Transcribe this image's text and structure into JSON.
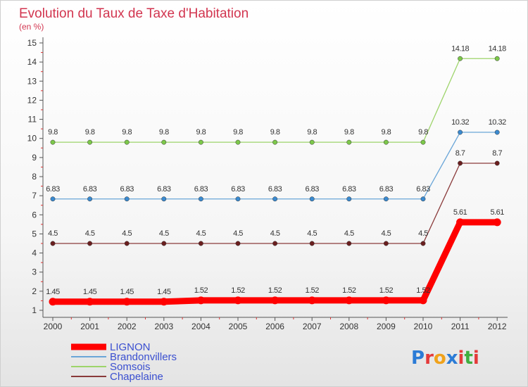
{
  "brand": {
    "name": "Proxiti",
    "letters": [
      "P",
      "r",
      "o",
      "x",
      "i",
      "t",
      "i"
    ],
    "colors": [
      "#2b7bd6",
      "#e43a3a",
      "#f0a21b",
      "#2b7bd6",
      "#e43a3a",
      "#3fae3f",
      "#e43a3a"
    ]
  },
  "chart_data": {
    "type": "line",
    "title": "Evolution du Taux de Taxe d'Habitation",
    "subtitle": "(en %)",
    "xlabel": "",
    "ylabel": "",
    "ylim": [
      1,
      15
    ],
    "yticks": [
      1,
      2,
      3,
      4,
      5,
      6,
      7,
      8,
      9,
      10,
      11,
      12,
      13,
      14,
      15
    ],
    "categories": [
      "2000",
      "2001",
      "2002",
      "2003",
      "2004",
      "2005",
      "2006",
      "2007",
      "2008",
      "2009",
      "2010",
      "2011",
      "2012"
    ],
    "grid": false,
    "legend_position": "bottom-left",
    "series": [
      {
        "name": "LIGNON",
        "color": "#ff0000",
        "point_color": "#ff0000",
        "width": 9,
        "values": [
          1.45,
          1.45,
          1.45,
          1.45,
          1.52,
          1.52,
          1.52,
          1.52,
          1.52,
          1.52,
          1.52,
          5.61,
          5.61
        ],
        "labels": [
          "1.45",
          "1.45",
          "1.45",
          "1.45",
          "1.52",
          "1.52",
          "1.52",
          "1.52",
          "1.52",
          "1.52",
          "1.52",
          "5.61",
          "5.61"
        ]
      },
      {
        "name": "Brandonvillers",
        "color": "#6aa6d8",
        "point_color": "#3a8ad0",
        "width": 1.3,
        "values": [
          6.83,
          6.83,
          6.83,
          6.83,
          6.83,
          6.83,
          6.83,
          6.83,
          6.83,
          6.83,
          6.83,
          10.32,
          10.32
        ],
        "labels": [
          "6.83",
          "6.83",
          "6.83",
          "6.83",
          "6.83",
          "6.83",
          "6.83",
          "6.83",
          "6.83",
          "6.83",
          "6.83",
          "10.32",
          "10.32"
        ]
      },
      {
        "name": "Somsois",
        "color": "#9dd46a",
        "point_color": "#7cc84a",
        "width": 1.3,
        "values": [
          9.8,
          9.8,
          9.8,
          9.8,
          9.8,
          9.8,
          9.8,
          9.8,
          9.8,
          9.8,
          9.8,
          14.18,
          14.18
        ],
        "labels": [
          "9.8",
          "9.8",
          "9.8",
          "9.8",
          "9.8",
          "9.8",
          "9.8",
          "9.8",
          "9.8",
          "9.8",
          "9.8",
          "14.18",
          "14.18"
        ]
      },
      {
        "name": "Chapelaine",
        "color": "#8a3a3a",
        "point_color": "#6b1f1f",
        "width": 1.3,
        "values": [
          4.5,
          4.5,
          4.5,
          4.5,
          4.5,
          4.5,
          4.5,
          4.5,
          4.5,
          4.5,
          4.5,
          8.7,
          8.7
        ],
        "labels": [
          "4.5",
          "4.5",
          "4.5",
          "4.5",
          "4.5",
          "4.5",
          "4.5",
          "4.5",
          "4.5",
          "4.5",
          "4.5",
          "8.7",
          "8.7"
        ]
      }
    ]
  }
}
